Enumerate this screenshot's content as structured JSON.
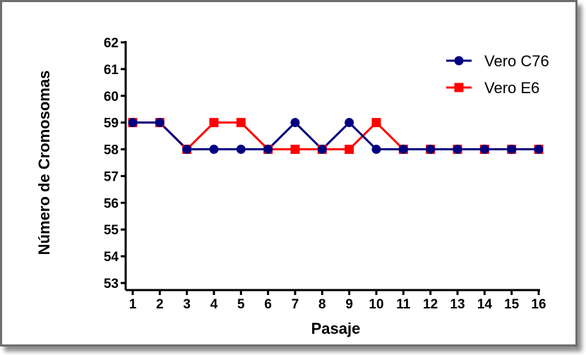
{
  "chart_data": {
    "type": "line",
    "title": "",
    "xlabel": "Pasaje",
    "ylabel": "Número de Cromosomas",
    "x": [
      1,
      2,
      3,
      4,
      5,
      6,
      7,
      8,
      9,
      10,
      11,
      12,
      13,
      14,
      15,
      16
    ],
    "x_tick_labels": [
      "1",
      "2",
      "3",
      "4",
      "5",
      "6",
      "7",
      "8",
      "9",
      "10",
      "11",
      "12",
      "13",
      "14",
      "15",
      "16"
    ],
    "ylim": [
      53,
      62
    ],
    "y_tick_labels": [
      "53",
      "54",
      "55",
      "56",
      "57",
      "58",
      "59",
      "60",
      "61",
      "62"
    ],
    "grid": false,
    "legend_position": "top-right",
    "series": [
      {
        "name": "Vero C76",
        "marker": "circle",
        "color": "#000080",
        "values": [
          59,
          59,
          58,
          58,
          58,
          58,
          59,
          58,
          59,
          58,
          58,
          58,
          58,
          58,
          58,
          58
        ]
      },
      {
        "name": "Vero E6",
        "marker": "square",
        "color": "#ff0000",
        "values": [
          59,
          59,
          58,
          59,
          59,
          58,
          58,
          58,
          58,
          59,
          58,
          58,
          58,
          58,
          58,
          58
        ]
      }
    ]
  }
}
